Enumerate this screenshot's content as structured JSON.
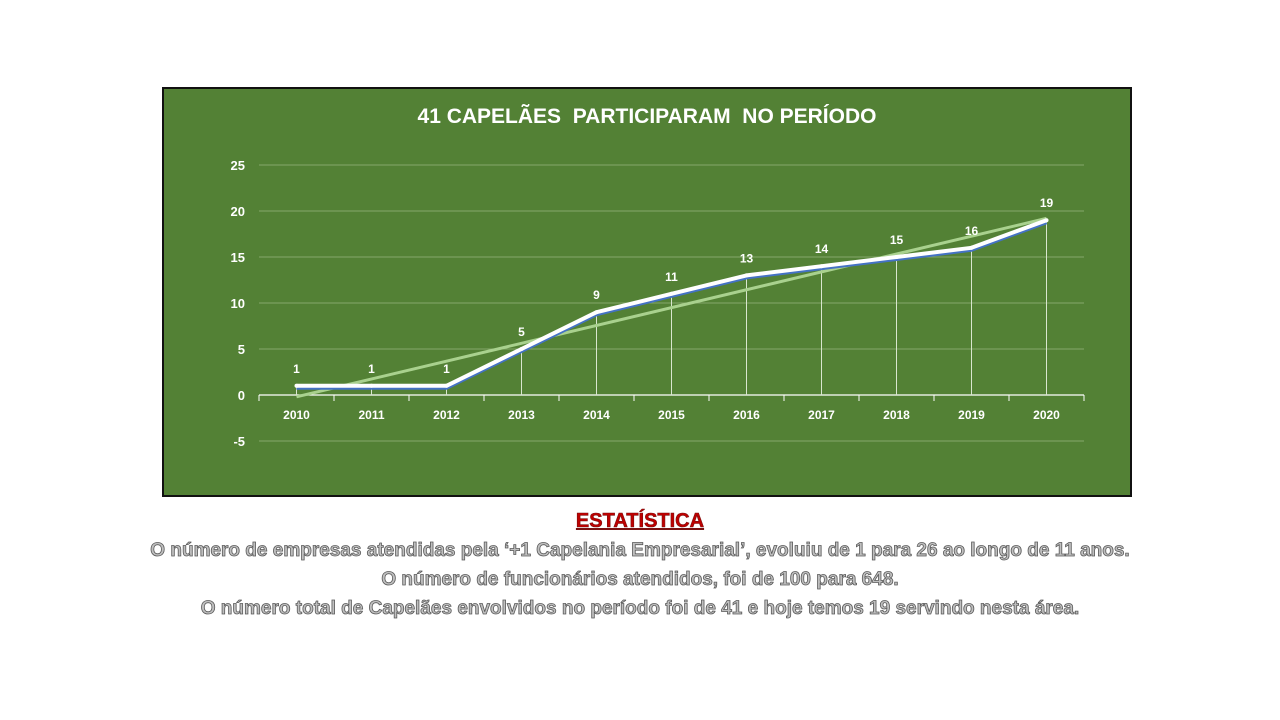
{
  "chart_data": {
    "type": "line",
    "title": "41 CAPELÃES  PARTICIPARAM  NO PERÍODO",
    "categories": [
      "2010",
      "2011",
      "2012",
      "2013",
      "2014",
      "2015",
      "2016",
      "2017",
      "2018",
      "2019",
      "2020"
    ],
    "series": [
      {
        "values": [
          1,
          1,
          1,
          5,
          9,
          11,
          13,
          14,
          15,
          16,
          19
        ],
        "color": "#ffffff",
        "shadow_color": "#4472c4",
        "data_labels": true
      }
    ],
    "trendline": {
      "type": "linear",
      "color": "#a9d18e",
      "start": -0.2,
      "end": 19.2
    },
    "ylim": [
      -5,
      25
    ],
    "yticks": [
      "-5",
      "0",
      "5",
      "10",
      "15",
      "20",
      "25"
    ],
    "gridlines": true,
    "drop_lines": true,
    "legend": "none",
    "background": "#538135"
  },
  "caption": {
    "heading": "ESTATÍSTICA",
    "lines": [
      "O número de empresas atendidas pela ‘+1 Capelania Empresarial’, evoluiu de 1 para 26 ao longo de 11 anos.",
      "O número de funcionários atendidos, foi de 100 para 648.",
      "O número total de Capelães envolvidos no período foi de 41 e hoje temos 19 servindo nesta área."
    ]
  }
}
